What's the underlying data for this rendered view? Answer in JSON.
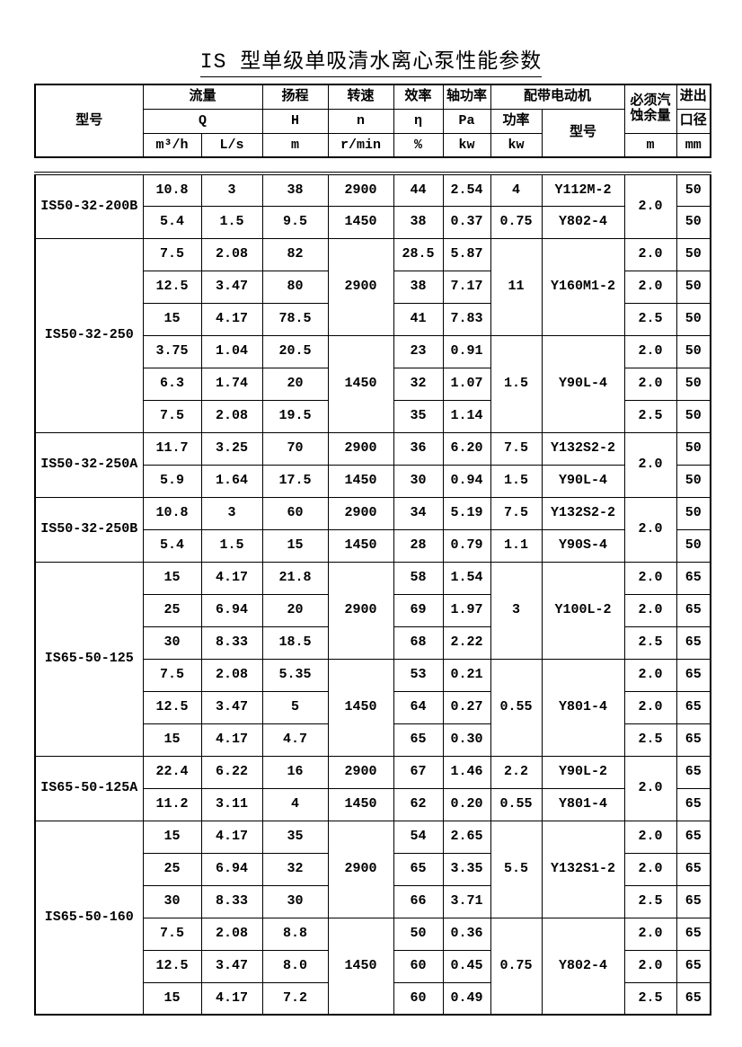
{
  "page": {
    "title": "IS 型单级单吸清水离心泵性能参数"
  },
  "table": {
    "columns": [
      "flow-m3h",
      "flow-ls",
      "head-m",
      "speed-rpm",
      "efficiency-pct",
      "shaft-power-kw",
      "motor-power-kw",
      "motor-model",
      "npsh-m",
      "diameter-mm"
    ],
    "header": {
      "model": "型号",
      "flow": "流量",
      "flow_symbol": "Q",
      "flow_unit_m3h": "m³/h",
      "flow_unit_ls": "L/s",
      "head": "扬程",
      "head_symbol": "H",
      "head_unit": "m",
      "speed": "转速",
      "speed_symbol": "n",
      "speed_unit": "r/min",
      "efficiency": "效率",
      "efficiency_symbol": "η",
      "efficiency_unit": "%",
      "shaft_power": "轴功率",
      "shaft_power_symbol": "Pa",
      "shaft_power_unit": "kw",
      "motor": "配带电动机",
      "motor_power": "功率",
      "motor_power_unit": "kw",
      "motor_model": "型号",
      "npsh": "必须汽蚀余量",
      "npsh_unit": "m",
      "diameter_top": "进出",
      "diameter_bottom": "口径",
      "diameter_unit": "mm"
    },
    "groups": [
      {
        "model": "IS50-32-200B",
        "rows": [
          [
            "10.8",
            "3",
            "38",
            "2900",
            "44",
            "2.54",
            "4",
            "Y112M-2",
            {
              "v": "2.0",
              "rs": 2
            },
            "50"
          ],
          [
            "5.4",
            "1.5",
            "9.5",
            "1450",
            "38",
            "0.37",
            "0.75",
            "Y802-4",
            null,
            "50"
          ]
        ]
      },
      {
        "model": "IS50-32-250",
        "rows": [
          [
            "7.5",
            "2.08",
            "82",
            {
              "v": "2900",
              "rs": 3
            },
            "28.5",
            "5.87",
            {
              "v": "11",
              "rs": 3
            },
            {
              "v": "Y160M1-2",
              "rs": 3
            },
            "2.0",
            "50"
          ],
          [
            "12.5",
            "3.47",
            "80",
            null,
            "38",
            "7.17",
            null,
            null,
            "2.0",
            "50"
          ],
          [
            "15",
            "4.17",
            "78.5",
            null,
            "41",
            "7.83",
            null,
            null,
            "2.5",
            "50"
          ],
          [
            "3.75",
            "1.04",
            "20.5",
            {
              "v": "1450",
              "rs": 3
            },
            "23",
            "0.91",
            {
              "v": "1.5",
              "rs": 3
            },
            {
              "v": "Y90L-4",
              "rs": 3
            },
            "2.0",
            "50"
          ],
          [
            "6.3",
            "1.74",
            "20",
            null,
            "32",
            "1.07",
            null,
            null,
            "2.0",
            "50"
          ],
          [
            "7.5",
            "2.08",
            "19.5",
            null,
            "35",
            "1.14",
            null,
            null,
            "2.5",
            "50"
          ]
        ]
      },
      {
        "model": "IS50-32-250A",
        "rows": [
          [
            "11.7",
            "3.25",
            "70",
            "2900",
            "36",
            "6.20",
            "7.5",
            "Y132S2-2",
            {
              "v": "2.0",
              "rs": 2
            },
            "50"
          ],
          [
            "5.9",
            "1.64",
            "17.5",
            "1450",
            "30",
            "0.94",
            "1.5",
            "Y90L-4",
            null,
            "50"
          ]
        ]
      },
      {
        "model": "IS50-32-250B",
        "rows": [
          [
            "10.8",
            "3",
            "60",
            "2900",
            "34",
            "5.19",
            "7.5",
            "Y132S2-2",
            {
              "v": "2.0",
              "rs": 2
            },
            "50"
          ],
          [
            "5.4",
            "1.5",
            "15",
            "1450",
            "28",
            "0.79",
            "1.1",
            "Y90S-4",
            null,
            "50"
          ]
        ]
      },
      {
        "model": "IS65-50-125",
        "rows": [
          [
            "15",
            "4.17",
            "21.8",
            {
              "v": "2900",
              "rs": 3
            },
            "58",
            "1.54",
            {
              "v": "3",
              "rs": 3
            },
            {
              "v": "Y100L-2",
              "rs": 3
            },
            "2.0",
            "65"
          ],
          [
            "25",
            "6.94",
            "20",
            null,
            "69",
            "1.97",
            null,
            null,
            "2.0",
            "65"
          ],
          [
            "30",
            "8.33",
            "18.5",
            null,
            "68",
            "2.22",
            null,
            null,
            "2.5",
            "65"
          ],
          [
            "7.5",
            "2.08",
            "5.35",
            {
              "v": "1450",
              "rs": 3
            },
            "53",
            "0.21",
            {
              "v": "0.55",
              "rs": 3
            },
            {
              "v": "Y801-4",
              "rs": 3
            },
            "2.0",
            "65"
          ],
          [
            "12.5",
            "3.47",
            "5",
            null,
            "64",
            "0.27",
            null,
            null,
            "2.0",
            "65"
          ],
          [
            "15",
            "4.17",
            "4.7",
            null,
            "65",
            "0.30",
            null,
            null,
            "2.5",
            "65"
          ]
        ]
      },
      {
        "model": "IS65-50-125A",
        "rows": [
          [
            "22.4",
            "6.22",
            "16",
            "2900",
            "67",
            "1.46",
            "2.2",
            "Y90L-2",
            {
              "v": "2.0",
              "rs": 2
            },
            "65"
          ],
          [
            "11.2",
            "3.11",
            "4",
            "1450",
            "62",
            "0.20",
            "0.55",
            "Y801-4",
            null,
            "65"
          ]
        ]
      },
      {
        "model": "IS65-50-160",
        "rows": [
          [
            "15",
            "4.17",
            "35",
            {
              "v": "2900",
              "rs": 3
            },
            "54",
            "2.65",
            {
              "v": "5.5",
              "rs": 3
            },
            {
              "v": "Y132S1-2",
              "rs": 3
            },
            "2.0",
            "65"
          ],
          [
            "25",
            "6.94",
            "32",
            null,
            "65",
            "3.35",
            null,
            null,
            "2.0",
            "65"
          ],
          [
            "30",
            "8.33",
            "30",
            null,
            "66",
            "3.71",
            null,
            null,
            "2.5",
            "65"
          ],
          [
            "7.5",
            "2.08",
            "8.8",
            {
              "v": "1450",
              "rs": 3
            },
            "50",
            "0.36",
            {
              "v": "0.75",
              "rs": 3
            },
            {
              "v": "Y802-4",
              "rs": 3
            },
            "2.0",
            "65"
          ],
          [
            "12.5",
            "3.47",
            "8.0",
            null,
            "60",
            "0.45",
            null,
            null,
            "2.0",
            "65"
          ],
          [
            "15",
            "4.17",
            "7.2",
            null,
            "60",
            "0.49",
            null,
            null,
            "2.5",
            "65"
          ]
        ]
      }
    ]
  }
}
